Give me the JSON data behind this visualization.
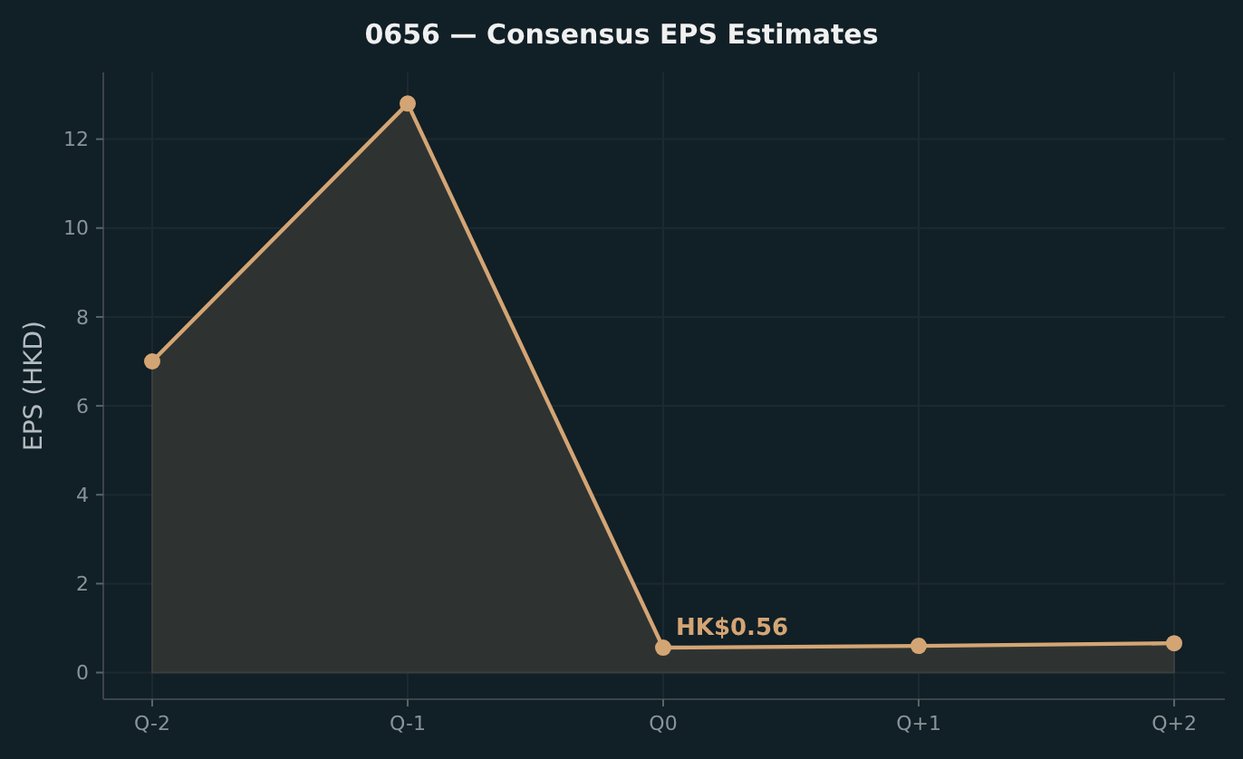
{
  "chart_data": {
    "type": "area",
    "title": "0656 — Consensus EPS Estimates",
    "ylabel": "EPS (HKD)",
    "categories": [
      "Q-2",
      "Q-1",
      "Q0",
      "Q+1",
      "Q+2"
    ],
    "series": [
      {
        "color": "#d4a574",
        "values": [
          7.0,
          12.8,
          0.56,
          0.6,
          0.66
        ]
      }
    ],
    "ylim": [
      -0.6,
      13.5
    ],
    "yticks": [
      0,
      2,
      4,
      6,
      8,
      10,
      12
    ],
    "grid": true,
    "marker": "circle",
    "line_style": "solid",
    "annotations": [
      {
        "text": "HK$0.56",
        "x": "Q0",
        "y": 0.56
      }
    ]
  }
}
